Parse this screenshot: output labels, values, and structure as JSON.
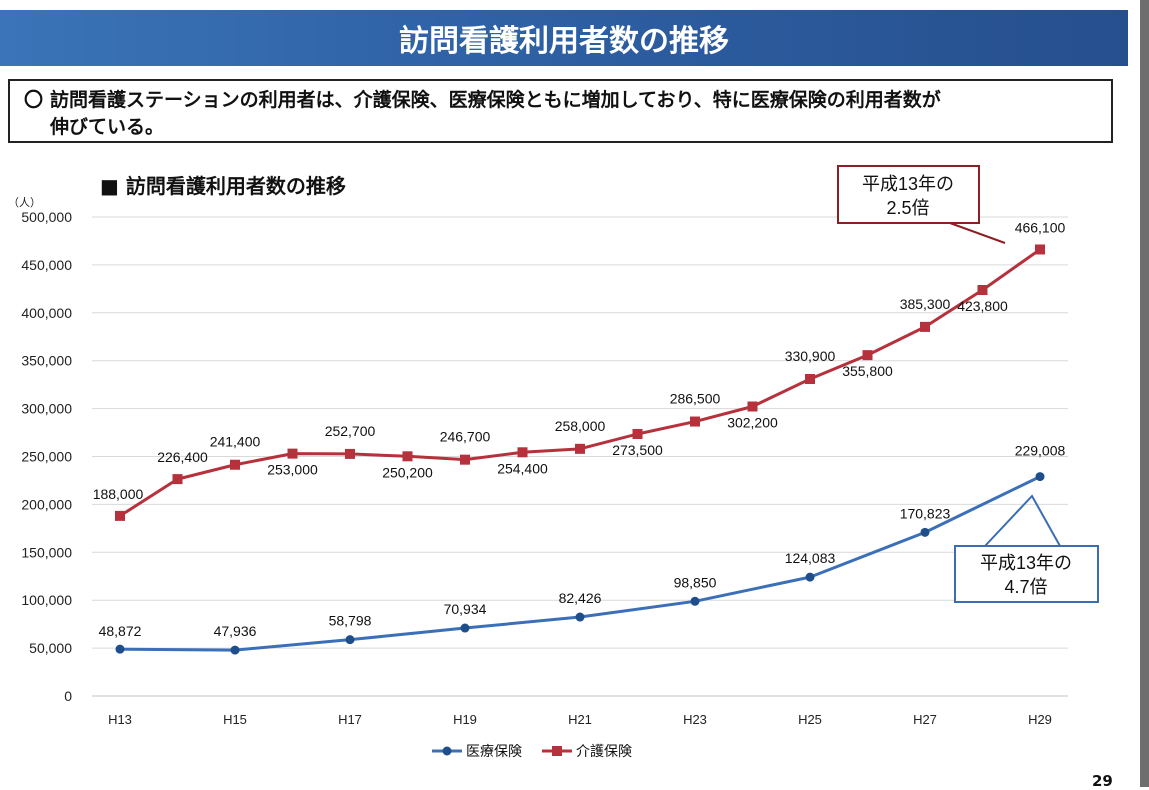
{
  "header": {
    "title": "訪問看護利用者数の推移"
  },
  "summary": {
    "mark": "〇",
    "line1": "訪問看護ステーションの利用者は、介護保険、医療保険ともに増加しており、特に医療保険の利用者数が",
    "line2": "伸びている。"
  },
  "chart_title": "■ 訪問看護利用者数の推移",
  "page_number": "29",
  "colors": {
    "banner": "#2f62a6",
    "kaigo": "#b6313b",
    "iryo": "#3b70b8",
    "grid": "#d9d9d9"
  },
  "chart_data": {
    "type": "line",
    "title": "訪問看護利用者数の推移",
    "y_unit": "（人）",
    "ylim": [
      0,
      500000
    ],
    "yticks": [
      "0",
      "50,000",
      "100,000",
      "150,000",
      "200,000",
      "250,000",
      "300,000",
      "350,000",
      "400,000",
      "450,000",
      "500,000"
    ],
    "x_tick_labels": [
      "H13",
      "H15",
      "H17",
      "H19",
      "H21",
      "H23",
      "H25",
      "H27",
      "H29"
    ],
    "grid": "horizontal",
    "legend_position": "bottom",
    "series": [
      {
        "name": "医療保険",
        "marker": "circle",
        "x": [
          "H13",
          "H15",
          "H17",
          "H19",
          "H21",
          "H23",
          "H25",
          "H27",
          "H29"
        ],
        "values": [
          48872,
          47936,
          58798,
          70934,
          82426,
          98850,
          124083,
          170823,
          229008
        ],
        "labels": [
          "48,872",
          "47,936",
          "58,798",
          "70,934",
          "82,426",
          "98,850",
          "124,083",
          "170,823",
          "229,008"
        ]
      },
      {
        "name": "介護保険",
        "marker": "square",
        "x": [
          "H13",
          "H14",
          "H15",
          "H16",
          "H17",
          "H18",
          "H19",
          "H20",
          "H21",
          "H22",
          "H23",
          "H24",
          "H25",
          "H26",
          "H27",
          "H28",
          "H29"
        ],
        "values": [
          188000,
          226400,
          241400,
          253000,
          252700,
          250200,
          246700,
          254400,
          258000,
          273500,
          286500,
          302200,
          330900,
          355800,
          385300,
          423800,
          466100
        ],
        "labels": [
          "188,000",
          "226,400",
          "241,400",
          "253,000",
          "252,700",
          "250,200",
          "246,700",
          "254,400",
          "258,000",
          "273,500",
          "286,500",
          "302,200",
          "330,900",
          "355,800",
          "385,300",
          "423,800",
          "466,100"
        ]
      }
    ],
    "annotations": [
      {
        "series": "介護保険",
        "line1": "平成13年の",
        "line2": "2.5倍"
      },
      {
        "series": "医療保険",
        "line1": "平成13年の",
        "line2": "4.7倍"
      }
    ]
  }
}
